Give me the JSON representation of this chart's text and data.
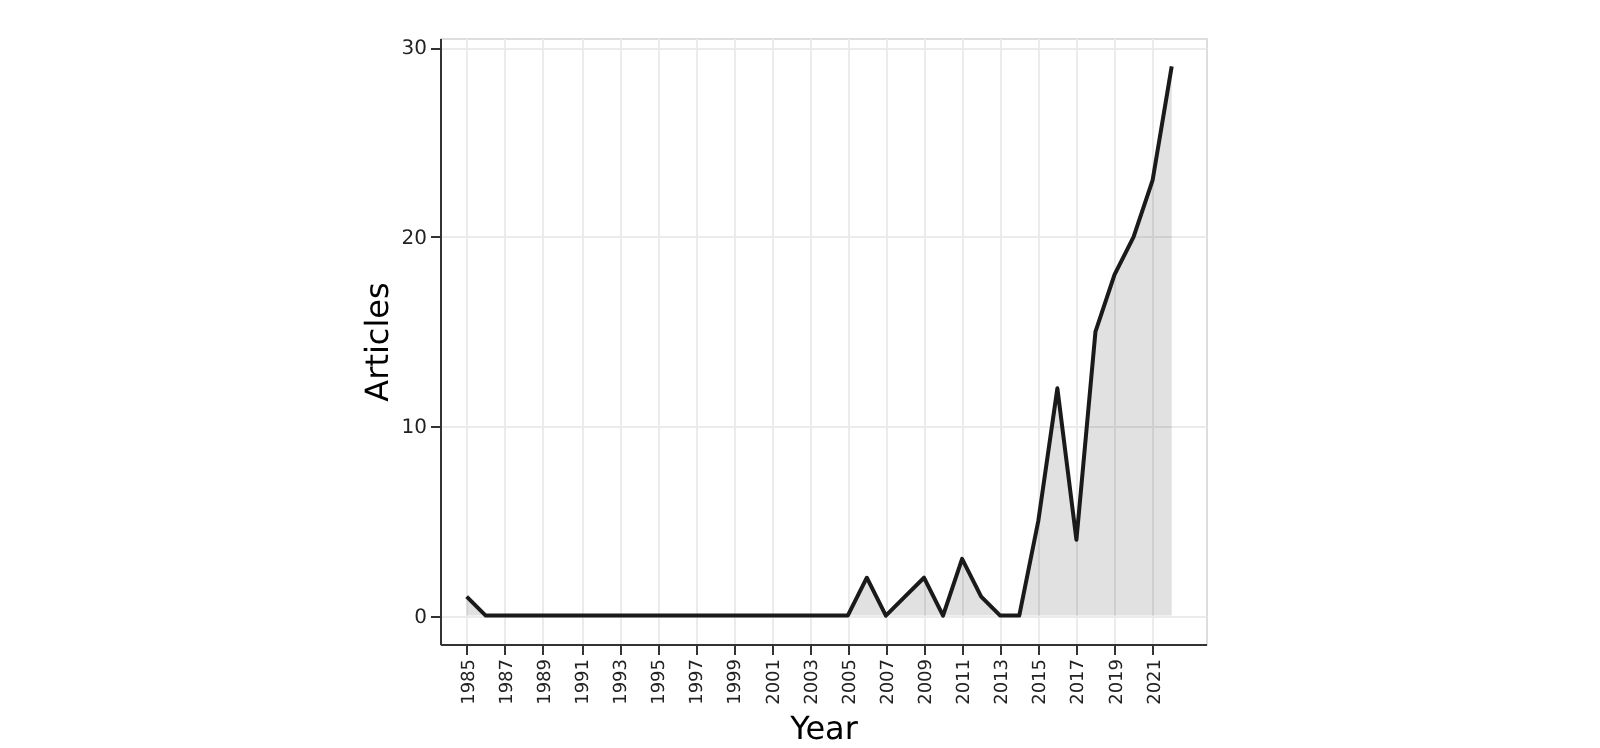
{
  "chart_data": {
    "type": "area",
    "xlabel": "Year",
    "ylabel": "Articles",
    "x": [
      1985,
      1986,
      1987,
      1988,
      1989,
      1990,
      1991,
      1992,
      1993,
      1994,
      1995,
      1996,
      1997,
      1998,
      1999,
      2000,
      2001,
      2002,
      2003,
      2004,
      2005,
      2006,
      2007,
      2008,
      2009,
      2010,
      2011,
      2012,
      2013,
      2014,
      2015,
      2016,
      2017,
      2018,
      2019,
      2020,
      2021,
      2022
    ],
    "series": [
      {
        "color": "#1a1a1a",
        "values": [
          1,
          0,
          0,
          0,
          0,
          0,
          0,
          0,
          0,
          0,
          0,
          0,
          0,
          0,
          0,
          0,
          0,
          0,
          0,
          0,
          0,
          2,
          0,
          1,
          2,
          0,
          3,
          1,
          0,
          0,
          5,
          12,
          4,
          15,
          18,
          20,
          23,
          29
        ]
      }
    ],
    "xlim": [
      1983.6,
      2023.8
    ],
    "xticks": [
      1985,
      1987,
      1989,
      1991,
      1993,
      1995,
      1997,
      1999,
      2001,
      2003,
      2005,
      2007,
      2009,
      2011,
      2013,
      2015,
      2017,
      2019,
      2021
    ],
    "ylim": [
      -1.5,
      30.5
    ],
    "yticks": [
      0,
      10,
      20,
      30
    ],
    "grid": true
  }
}
